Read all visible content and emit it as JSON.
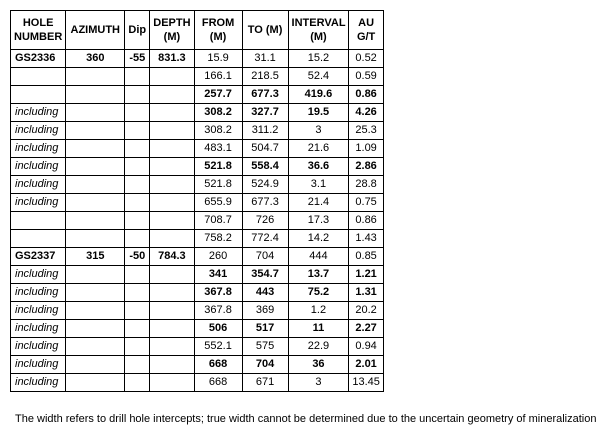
{
  "table": {
    "header": [
      "HOLE NUMBER",
      "AZIMUTH",
      "Dip",
      "DEPTH (M)",
      "FROM (M)",
      "TO (M)",
      "INTERVAL (M)",
      "AU G/T"
    ],
    "rows": [
      {
        "cells": [
          "GS2336",
          360,
          -55,
          831.3,
          15.9,
          31.1,
          15.2,
          0.52
        ]
      },
      {
        "cells": [
          null,
          null,
          null,
          null,
          166.1,
          218.5,
          52.4,
          0.59
        ]
      },
      {
        "cells": [
          null,
          null,
          null,
          null,
          257.7,
          677.3,
          419.6,
          0.86
        ],
        "bold": true
      },
      {
        "cells": [
          "including",
          null,
          null,
          null,
          308.2,
          327.7,
          19.5,
          4.26
        ],
        "bold": true,
        "italic": true
      },
      {
        "cells": [
          "including",
          null,
          null,
          null,
          308.2,
          311.2,
          3,
          25.3
        ],
        "italic": true
      },
      {
        "cells": [
          "including",
          null,
          null,
          null,
          483.1,
          504.7,
          21.6,
          1.09
        ],
        "italic": true
      },
      {
        "cells": [
          "including",
          null,
          null,
          null,
          521.8,
          558.4,
          36.6,
          2.86
        ],
        "bold": true,
        "italic": true
      },
      {
        "cells": [
          "including",
          null,
          null,
          null,
          521.8,
          524.9,
          3.1,
          28.8
        ],
        "italic": true
      },
      {
        "cells": [
          "including",
          null,
          null,
          null,
          655.9,
          677.3,
          21.4,
          0.75
        ],
        "italic": true
      },
      {
        "cells": [
          null,
          null,
          null,
          null,
          708.7,
          726,
          17.3,
          0.86
        ]
      },
      {
        "cells": [
          null,
          null,
          null,
          null,
          758.2,
          772.4,
          14.2,
          1.43
        ]
      },
      {
        "cells": [
          "GS2337",
          315,
          -50,
          784.3,
          260,
          704,
          444,
          0.85
        ]
      },
      {
        "cells": [
          "including",
          null,
          null,
          null,
          341,
          354.7,
          13.7,
          1.21
        ],
        "bold": true,
        "italic": true
      },
      {
        "cells": [
          "including",
          null,
          null,
          null,
          367.8,
          443,
          75.2,
          1.31
        ],
        "bold": true,
        "italic": true
      },
      {
        "cells": [
          "including",
          null,
          null,
          null,
          367.8,
          369,
          1.2,
          20.2
        ],
        "italic": true
      },
      {
        "cells": [
          "including",
          null,
          null,
          null,
          506,
          517,
          11,
          2.27
        ],
        "bold": true,
        "italic": true
      },
      {
        "cells": [
          "including",
          null,
          null,
          null,
          552.1,
          575,
          22.9,
          0.94
        ],
        "italic": true
      },
      {
        "cells": [
          "including",
          null,
          null,
          null,
          668,
          704,
          36,
          2.01
        ],
        "bold": true,
        "italic": true
      },
      {
        "cells": [
          "including",
          null,
          null,
          null,
          668,
          671,
          3,
          13.45
        ],
        "italic": true
      }
    ]
  },
  "footnote": "The width refers to drill hole intercepts; true width cannot be determined due to the uncertain geometry of mineralization"
}
